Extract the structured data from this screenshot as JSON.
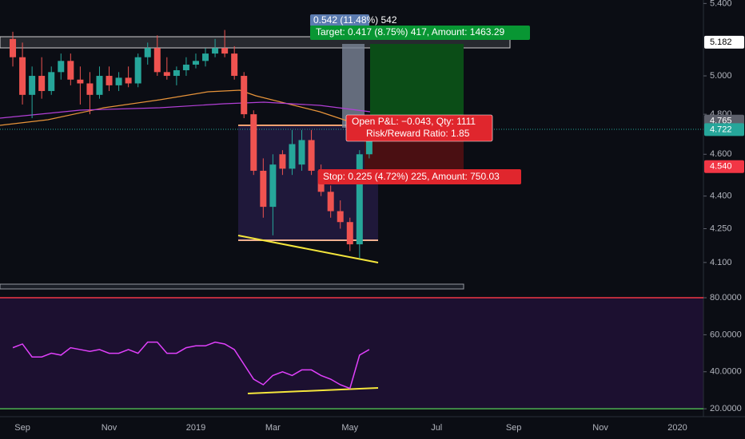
{
  "chart_data": [
    {
      "type": "candlestick",
      "categories": [
        null,
        "Sep",
        null,
        null,
        null,
        null,
        null,
        null,
        null,
        null,
        "Nov",
        null,
        null,
        null,
        null,
        null,
        null,
        null,
        null,
        "2019",
        null,
        null,
        null,
        null,
        null,
        null,
        null,
        "Mar",
        null,
        null,
        null,
        null,
        null,
        null,
        null,
        "May",
        null,
        null,
        null,
        null,
        null,
        null,
        null,
        null,
        "Jul",
        null,
        null,
        null,
        null,
        null,
        null,
        null,
        "Sep",
        null,
        null,
        null,
        null,
        null,
        null,
        null,
        null,
        "Nov",
        null,
        null,
        null,
        null,
        null,
        null,
        null,
        "2020",
        null,
        null
      ],
      "open": [
        5.2,
        5.1,
        4.9,
        5.0,
        4.92,
        5.02,
        5.08,
        4.98,
        4.96,
        4.9,
        5.0,
        4.95,
        4.99,
        4.96,
        5.1,
        5.15,
        5.02,
        5.0,
        5.03,
        5.06,
        5.08,
        5.12,
        5.15,
        5.12,
        5.0,
        4.8,
        4.52,
        4.35,
        4.6,
        4.53,
        4.55,
        4.67,
        4.52,
        4.42,
        4.33,
        4.28,
        4.18,
        4.6,
        null,
        null,
        null,
        null,
        null,
        null,
        null,
        null,
        null,
        null,
        null,
        null,
        null,
        null,
        null,
        null,
        null,
        null,
        null,
        null,
        null,
        null,
        null,
        null,
        null,
        null,
        null,
        null,
        null,
        null,
        null,
        null,
        null,
        null
      ],
      "high": [
        5.24,
        5.18,
        5.05,
        5.1,
        5.05,
        5.12,
        5.12,
        5.05,
        5.02,
        5.05,
        5.05,
        5.02,
        5.05,
        5.12,
        5.18,
        5.22,
        5.1,
        5.05,
        5.1,
        5.12,
        5.15,
        5.2,
        5.25,
        5.16,
        5.02,
        4.82,
        4.58,
        4.6,
        4.62,
        4.72,
        4.72,
        4.72,
        4.55,
        4.45,
        4.38,
        4.3,
        4.62,
        4.75,
        null,
        null,
        null,
        null,
        null,
        null,
        null,
        null,
        null,
        null,
        null,
        null,
        null,
        null,
        null,
        null,
        null,
        null,
        null,
        null,
        null,
        null,
        null,
        null,
        null,
        null,
        null,
        null,
        null,
        null,
        null,
        null,
        null,
        null
      ],
      "low": [
        5.05,
        4.85,
        4.78,
        4.88,
        4.9,
        4.98,
        4.95,
        4.85,
        4.8,
        4.88,
        4.92,
        4.92,
        4.94,
        4.94,
        5.06,
        5.0,
        4.98,
        4.95,
        5.0,
        5.04,
        5.05,
        5.1,
        5.1,
        4.98,
        4.78,
        4.5,
        4.3,
        4.22,
        4.5,
        4.5,
        4.52,
        4.5,
        4.4,
        4.3,
        4.25,
        4.15,
        4.12,
        4.58,
        null,
        null,
        null,
        null,
        null,
        null,
        null,
        null,
        null,
        null,
        null,
        null,
        null,
        null,
        null,
        null,
        null,
        null,
        null,
        null,
        null,
        null,
        null,
        null,
        null,
        null,
        null,
        null,
        null,
        null,
        null,
        null,
        null,
        null
      ],
      "close": [
        5.1,
        4.9,
        5.0,
        4.92,
        5.02,
        5.08,
        4.98,
        4.96,
        4.9,
        5.0,
        4.95,
        4.99,
        4.96,
        5.1,
        5.15,
        5.02,
        5.0,
        5.03,
        5.06,
        5.08,
        5.12,
        5.15,
        5.12,
        5.0,
        4.8,
        4.52,
        4.35,
        4.55,
        4.53,
        4.65,
        4.67,
        4.52,
        4.42,
        4.33,
        4.28,
        4.18,
        4.6,
        4.72,
        null,
        null,
        null,
        null,
        null,
        null,
        null,
        null,
        null,
        null,
        null,
        null,
        null,
        null,
        null,
        null,
        null,
        null,
        null,
        null,
        null,
        null,
        null,
        null,
        null,
        null,
        null,
        null,
        null,
        null,
        null,
        null,
        null,
        null
      ],
      "up_color": "#26a69a",
      "down_color": "#ef5350",
      "log_scale": true,
      "ylim": [
        4.01,
        5.42
      ],
      "yticks": [
        {
          "value": 5.4,
          "label": "5.400"
        },
        {
          "value": 5.0,
          "label": "5.000"
        },
        {
          "value": 4.8,
          "label": "4.800"
        },
        {
          "value": 4.6,
          "label": "4.600"
        },
        {
          "value": 4.4,
          "label": "4.400"
        },
        {
          "value": 4.25,
          "label": "4.250"
        },
        {
          "value": 4.1,
          "label": "4.100"
        }
      ],
      "price_labels": [
        {
          "value": 5.182,
          "color": "#ffffff",
          "text_color": "#000000"
        },
        {
          "value": 4.765,
          "color": "#5d606b",
          "text_color": "#ffffff"
        },
        {
          "value": 4.722,
          "color": "#26a69a",
          "text_color": "#ffffff"
        },
        {
          "value": {
            "value": 4.54,
            "label": "4.540"
          },
          "color": "#f23645",
          "text_color": "#ffffff"
        }
      ],
      "annotations": [
        "0.542 (11.48%) 542",
        "Target: 0.417 (8.75%) 417, Amount: 1463.29",
        "Open P&L: −0.043, Qty: 1111",
        "Risk/Reward Ratio: 1.85",
        "Stop: 0.225 (4.72%) 225, Amount: 750.03"
      ]
    },
    {
      "type": "line",
      "values": [
        53,
        55,
        48,
        48,
        50,
        49,
        53,
        52,
        51,
        52,
        50,
        50,
        52,
        50,
        56,
        56,
        50,
        50,
        53,
        54,
        54,
        56,
        55,
        52,
        44,
        36,
        33,
        38,
        40,
        38,
        41,
        41,
        38,
        36,
        33,
        31,
        49,
        52,
        null,
        null,
        null,
        null,
        null,
        null,
        null,
        null,
        null,
        null,
        null,
        null,
        null,
        null,
        null,
        null,
        null,
        null,
        null,
        null,
        null,
        null,
        null,
        null,
        null,
        null,
        null,
        null,
        null,
        null,
        null,
        null,
        null,
        null
      ],
      "color": "#e040fb",
      "ylim": [
        16.6,
        82.6
      ],
      "yticks": [
        {
          "value": 80,
          "label": "80.0000"
        },
        {
          "value": 60,
          "label": "60.0000"
        },
        {
          "value": 40,
          "label": "40.0000"
        },
        {
          "value": 20,
          "label": "20.0000"
        }
      ],
      "levels": [
        {
          "value": 80,
          "color": "#f23645"
        },
        {
          "value": 20,
          "color": "#4caf50"
        }
      ]
    }
  ]
}
